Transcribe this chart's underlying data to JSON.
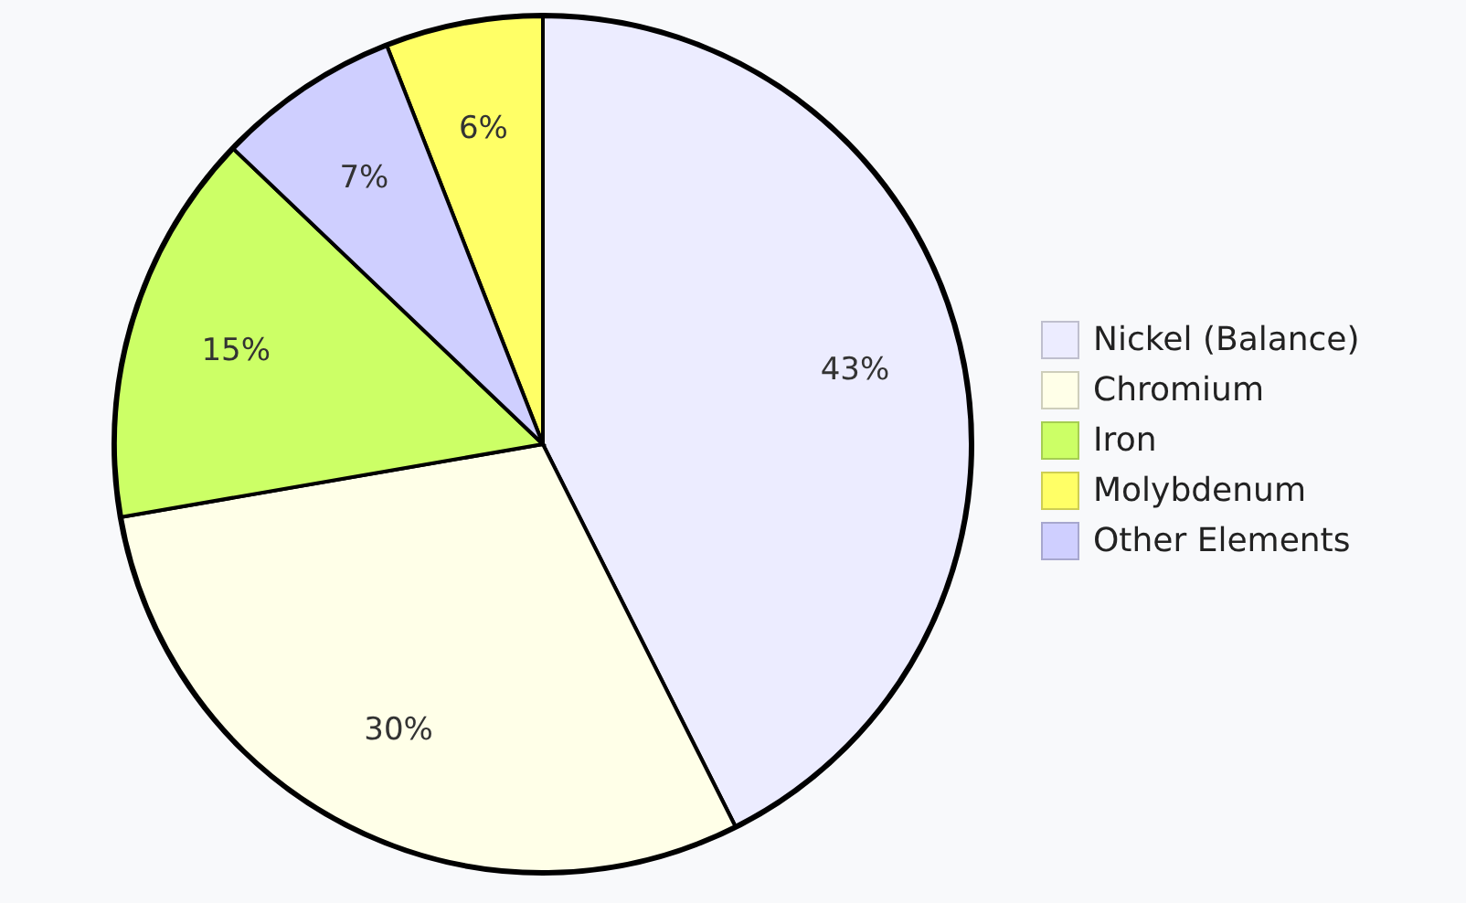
{
  "chart_data": {
    "type": "pie",
    "categories": [
      "Nickel (Balance)",
      "Chromium",
      "Iron",
      "Molybdenum",
      "Other Elements"
    ],
    "values": [
      43,
      30,
      15,
      6,
      7
    ],
    "value_labels": [
      "43%",
      "30%",
      "15%",
      "6%",
      "7%"
    ],
    "colors": [
      "#ececff",
      "#ffffe8",
      "#ccff66",
      "#ffff66",
      "#cfcfff"
    ],
    "legend": "right"
  }
}
